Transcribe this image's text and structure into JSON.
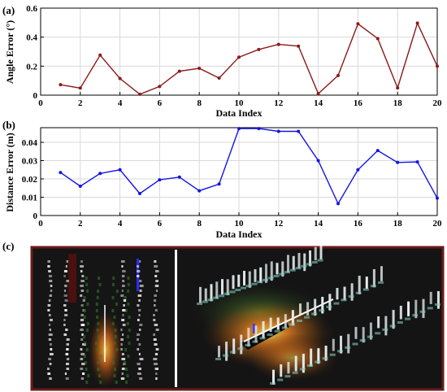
{
  "panel_labels": [
    "(a)",
    "(b)",
    "(c)"
  ],
  "colors": {
    "angle_series": "#8B1A1A",
    "distance_series": "#1414E6",
    "photo_frame": "#6B1A1A",
    "photo_bg": "#141414"
  },
  "chart_data": [
    {
      "type": "line",
      "panel": "(a)",
      "xlabel": "Data Index",
      "ylabel": "Angle Error (°)",
      "xlim": [
        0,
        20
      ],
      "ylim": [
        0,
        0.6
      ],
      "xticks": [
        0,
        2,
        4,
        6,
        8,
        10,
        12,
        14,
        16,
        18,
        20
      ],
      "yticks": [
        0,
        0.2,
        0.4,
        0.6
      ],
      "ytick_labels": [
        "0",
        "0.2",
        "0.4",
        "0.6"
      ],
      "grid": true,
      "x": [
        1,
        2,
        3,
        4,
        5,
        6,
        7,
        8,
        9,
        10,
        11,
        12,
        13,
        14,
        15,
        16,
        17,
        18,
        19,
        20
      ],
      "values": [
        0.072,
        0.049,
        0.276,
        0.115,
        0.006,
        0.06,
        0.165,
        0.185,
        0.118,
        0.262,
        0.315,
        0.35,
        0.338,
        0.01,
        0.135,
        0.492,
        0.39,
        0.05,
        0.497,
        0.2
      ]
    },
    {
      "type": "line",
      "panel": "(b)",
      "xlabel": "Data Index",
      "ylabel": "Distance Error (m)",
      "xlim": [
        0,
        20
      ],
      "ylim": [
        0,
        0.048
      ],
      "xticks": [
        0,
        2,
        4,
        6,
        8,
        10,
        12,
        14,
        16,
        18,
        20
      ],
      "yticks": [
        0,
        0.01,
        0.02,
        0.03,
        0.04
      ],
      "ytick_labels": [
        "0",
        "0.01",
        "0.02",
        "0.03",
        "0.04"
      ],
      "grid": true,
      "x": [
        1,
        2,
        3,
        4,
        5,
        6,
        7,
        8,
        9,
        10,
        11,
        12,
        13,
        14,
        15,
        16,
        17,
        18,
        19,
        20
      ],
      "values": [
        0.0235,
        0.016,
        0.023,
        0.025,
        0.012,
        0.0195,
        0.021,
        0.0135,
        0.0172,
        0.0475,
        0.0475,
        0.046,
        0.046,
        0.03,
        0.0065,
        0.025,
        0.0355,
        0.029,
        0.0293,
        0.0095
      ]
    }
  ],
  "image_panel": {
    "label": "(c)",
    "content": "lidar-point-cloud"
  }
}
